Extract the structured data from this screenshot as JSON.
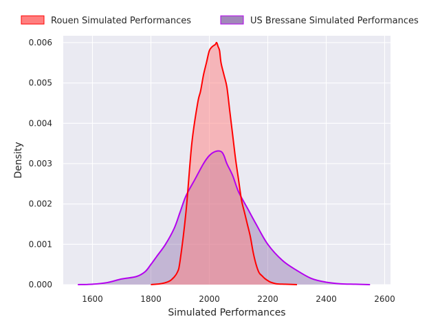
{
  "chart_data": {
    "type": "area",
    "title": "",
    "xlabel": "Simulated Performances",
    "ylabel": "Density",
    "xlim": [
      1500,
      2620
    ],
    "ylim": [
      0,
      0.00617
    ],
    "xticks": [
      1600,
      1800,
      2000,
      2200,
      2400,
      2600
    ],
    "yticks": [
      0.0,
      0.001,
      0.002,
      0.003,
      0.004,
      0.005,
      0.006
    ],
    "xtick_labels": [
      "1600",
      "1800",
      "2000",
      "2200",
      "2400",
      "2600"
    ],
    "ytick_labels": [
      "0.000",
      "0.001",
      "0.002",
      "0.003",
      "0.004",
      "0.005",
      "0.006"
    ],
    "grid": true,
    "legend_position": "top",
    "series": [
      {
        "name": "Rouen Simulated Performances",
        "line_color": "#ff0000",
        "fill_color": "#ff7f7f",
        "fill_opacity": 0.5,
        "x": [
          1800,
          1830,
          1850,
          1870,
          1890,
          1900,
          1920,
          1940,
          1960,
          1970,
          1980,
          1990,
          2000,
          2010,
          2020,
          2025,
          2030,
          2035,
          2040,
          2050,
          2060,
          2070,
          2080,
          2090,
          2100,
          2110,
          2120,
          2130,
          2140,
          2150,
          2160,
          2170,
          2180,
          2190,
          2200,
          2210,
          2230,
          2260,
          2300
        ],
        "y": [
          0.0,
          2e-05,
          5e-05,
          0.00012,
          0.0003,
          0.0006,
          0.0018,
          0.0035,
          0.0045,
          0.0048,
          0.0052,
          0.0055,
          0.0058,
          0.0059,
          0.00595,
          0.006,
          0.0059,
          0.0058,
          0.0055,
          0.0052,
          0.0049,
          0.0043,
          0.0037,
          0.0031,
          0.0026,
          0.0021,
          0.0018,
          0.0015,
          0.0012,
          0.0008,
          0.0005,
          0.0003,
          0.00022,
          0.00015,
          0.0001,
          6e-05,
          2e-05,
          1e-05,
          0.0
        ]
      },
      {
        "name": "US Bressane Simulated Performances",
        "line_color": "#b300ee",
        "fill_color": "#8a6aa8",
        "fill_opacity": 0.4,
        "x": [
          1550,
          1600,
          1650,
          1700,
          1750,
          1780,
          1800,
          1820,
          1850,
          1880,
          1900,
          1920,
          1950,
          1980,
          2000,
          2020,
          2040,
          2050,
          2060,
          2080,
          2100,
          2130,
          2160,
          2200,
          2250,
          2300,
          2350,
          2400,
          2450,
          2500,
          2550
        ],
        "y": [
          0.0,
          1e-05,
          5e-05,
          0.00014,
          0.0002,
          0.00032,
          0.0005,
          0.0007,
          0.001,
          0.0014,
          0.0018,
          0.0022,
          0.0026,
          0.003,
          0.0032,
          0.0033,
          0.0033,
          0.0032,
          0.003,
          0.0027,
          0.0023,
          0.0019,
          0.0015,
          0.001,
          0.0006,
          0.00035,
          0.00015,
          6e-05,
          2e-05,
          1e-05,
          0.0
        ]
      }
    ]
  }
}
